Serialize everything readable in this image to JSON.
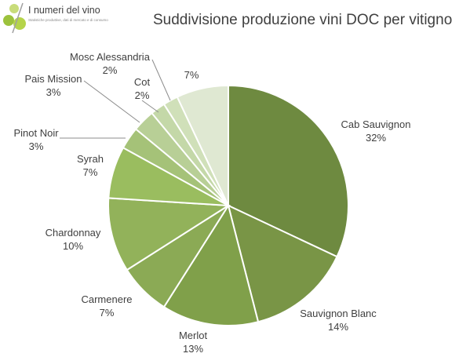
{
  "brand": {
    "name": "I numeri del vino",
    "tagline": "Statistiche produttive, dati di mercato e di consumo"
  },
  "chart_data": {
    "type": "pie",
    "title": "Suddivisione produzione vini DOC per vitigno",
    "slices": [
      {
        "label": "Cab Sauvignon",
        "value": 32,
        "display": "32%",
        "color": "#6e8a40"
      },
      {
        "label": "Sauvignon Blanc",
        "value": 14,
        "display": "14%",
        "color": "#799546"
      },
      {
        "label": "Merlot",
        "value": 13,
        "display": "13%",
        "color": "#80a04a"
      },
      {
        "label": "Carmenere",
        "value": 7,
        "display": "7%",
        "color": "#8baa55"
      },
      {
        "label": "Chardonnay",
        "value": 10,
        "display": "10%",
        "color": "#92b25a"
      },
      {
        "label": "Syrah",
        "value": 7,
        "display": "7%",
        "color": "#9abd5f"
      },
      {
        "label": "Pinot Noir",
        "value": 3,
        "display": "3%",
        "color": "#a5c278"
      },
      {
        "label": "Pais Mission",
        "value": 3,
        "display": "3%",
        "color": "#b8cf96"
      },
      {
        "label": "Cot",
        "value": 2,
        "display": "2%",
        "color": "#c4d8a8"
      },
      {
        "label": "Mosc Alessandria",
        "value": 2,
        "display": "2%",
        "color": "#d0e0b9"
      },
      {
        "label": "",
        "value": 7,
        "display": "7%",
        "color": "#dfe8d2"
      }
    ]
  }
}
